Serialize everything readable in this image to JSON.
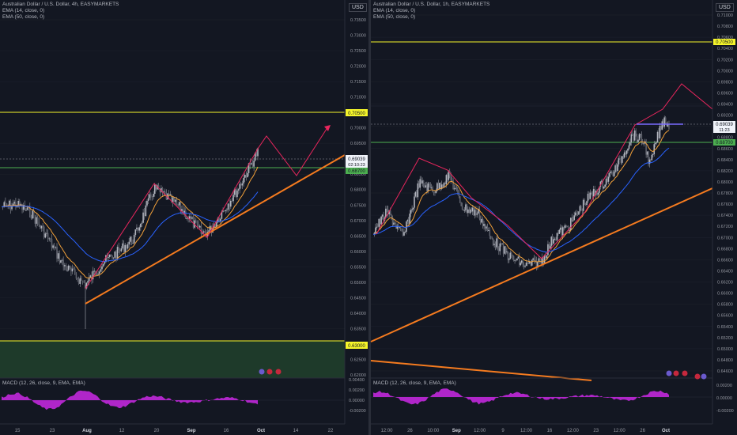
{
  "currency": "USD",
  "left": {
    "title": "Australian Dollar / U.S. Dollar, 4h, EASYMARKETS",
    "ema1": "EMA (14, close, 0)",
    "ema2": "EMA (50, close, 0)",
    "macd": "MACD (12, 26, close, 9, EMA, EMA)",
    "price_ticks": [
      "0.73500",
      "0.73000",
      "0.72500",
      "0.72000",
      "0.71500",
      "0.71000",
      "0.70500",
      "0.70000",
      "0.69500",
      "0.69000",
      "0.68500",
      "0.68000",
      "0.67500",
      "0.67000",
      "0.66500",
      "0.66000",
      "0.65500",
      "0.65000",
      "0.64500",
      "0.64000",
      "0.63500",
      "0.63000",
      "0.62500",
      "0.62000"
    ],
    "hl_resist": "0.70500",
    "hl_support": "0.68700",
    "hl_lower": "0.63000",
    "hl_price": "0.69039",
    "hl_timer": "02:10:23",
    "macd_ticks": [
      "0.00400",
      "0.00200",
      "0.00000",
      "-0.00200"
    ],
    "date_ticks": [
      "15",
      "23",
      "Aug",
      "12",
      "20",
      "Sep",
      "16",
      "Oct",
      "14",
      "22"
    ]
  },
  "right": {
    "title": "Australian Dollar / U.S. Dollar, 1h, EASYMARKETS",
    "ema1": "EMA (14, close, 0)",
    "ema2": "EMA (50, close, 0)",
    "macd": "MACD (12, 26, close, 9, EMA, EMA)",
    "price_ticks": [
      "0.71000",
      "0.70800",
      "0.70600",
      "0.70400",
      "0.70200",
      "0.70000",
      "0.69800",
      "0.69600",
      "0.69400",
      "0.69200",
      "0.69000",
      "0.68800",
      "0.68600",
      "0.68400",
      "0.68200",
      "0.68000",
      "0.67800",
      "0.67600",
      "0.67400",
      "0.67200",
      "0.67000",
      "0.66800",
      "0.66600",
      "0.66400",
      "0.66200",
      "0.66000",
      "0.65800",
      "0.65600",
      "0.65400",
      "0.65200",
      "0.65000",
      "0.64800",
      "0.64600"
    ],
    "hl_resist": "0.70500",
    "hl_support": "0.68700",
    "hl_price": "0.69039",
    "hl_timer": "11:23",
    "macd_ticks": [
      "0.00200",
      "0.00000",
      "-0.00200"
    ],
    "date_ticks": [
      "12:00",
      "26",
      "10:00",
      "Sep",
      "12:00",
      "9",
      "12:00",
      "16",
      "12:00",
      "23",
      "12:00",
      "26",
      "Oct"
    ]
  },
  "colors": {
    "bg": "#131722",
    "grid": "#1e222d",
    "candle": "#9598a1",
    "ema_fast": "#f2a13a",
    "ema_slow": "#2962ff",
    "trend": "#f57b1f",
    "projection": "#e9265d",
    "resist": "#f5f52a",
    "support": "#4caf50",
    "macd": "#b026c9",
    "zone": "#1e3a2a"
  }
}
